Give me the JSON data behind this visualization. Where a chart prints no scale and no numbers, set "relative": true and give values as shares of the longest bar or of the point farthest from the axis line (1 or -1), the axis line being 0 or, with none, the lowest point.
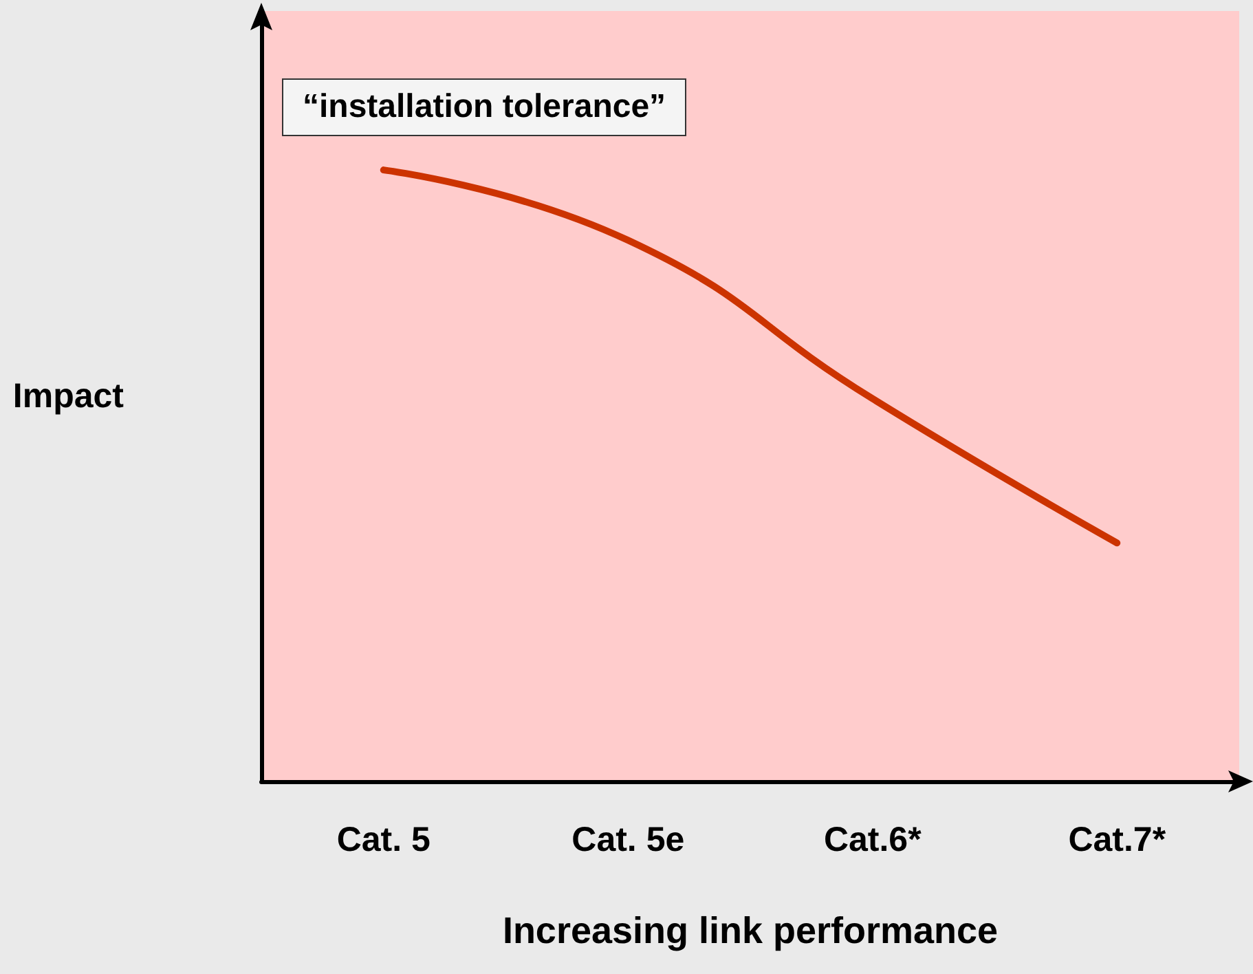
{
  "chart_data": {
    "type": "line",
    "relative": true,
    "categories": [
      "Cat. 5",
      "Cat. 5e",
      "Cat.6*",
      "Cat.7*"
    ],
    "series": [
      {
        "color": "#cc3300",
        "values": [
          1,
          0.885,
          0.626,
          0.39
        ]
      }
    ],
    "xlabel": "Increasing link performance",
    "ylabel": "Impact",
    "annotations": [
      "“installation tolerance”"
    ],
    "marker": "none",
    "line_style": "solid",
    "grid": false
  }
}
